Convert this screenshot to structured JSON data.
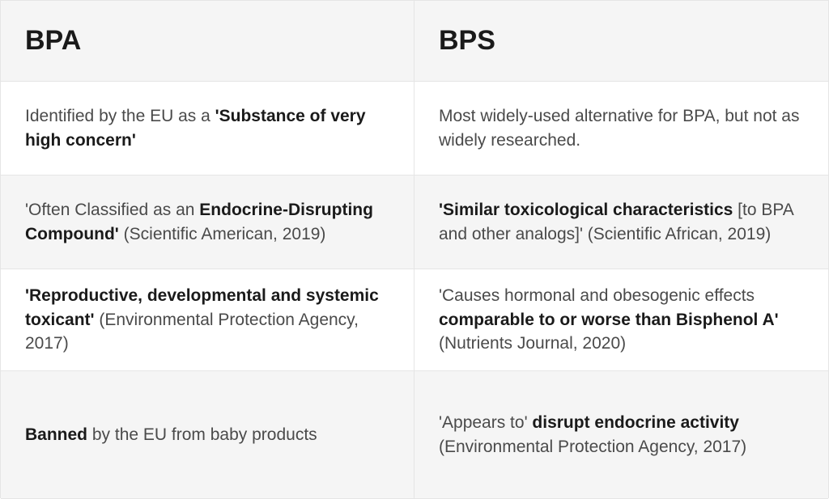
{
  "columns": {
    "left_header": "BPA",
    "right_header": "BPS"
  },
  "rows": [
    {
      "left": {
        "segments": [
          {
            "text": "Identified by the EU as a ",
            "bold": false
          },
          {
            "text": "'Substance of very high concern'",
            "bold": true
          }
        ]
      },
      "right": {
        "segments": [
          {
            "text": "Most widely-used alternative for BPA, but not as widely researched.",
            "bold": false
          }
        ]
      },
      "shaded": false
    },
    {
      "left": {
        "segments": [
          {
            "text": "'Often Classified as an ",
            "bold": false
          },
          {
            "text": "Endocrine-Disrupting Compound'",
            "bold": true
          },
          {
            "text": " (Scientific American, 2019)",
            "bold": false
          }
        ]
      },
      "right": {
        "segments": [
          {
            "text": "'Similar toxicological characteristics",
            "bold": true
          },
          {
            "text": " [to BPA and other analogs]' (Scientific African, 2019)",
            "bold": false
          }
        ]
      },
      "shaded": true
    },
    {
      "left": {
        "segments": [
          {
            "text": "'Reproductive, developmental and systemic toxicant'",
            "bold": true
          },
          {
            "text": " (Environmental Protection Agency, 2017)",
            "bold": false
          }
        ]
      },
      "right": {
        "segments": [
          {
            "text": "'Causes hormonal and obesogenic effects ",
            "bold": false
          },
          {
            "text": "comparable to or worse than Bisphenol A'",
            "bold": true
          },
          {
            "text": " (Nutrients Journal, 2020)",
            "bold": false
          }
        ]
      },
      "shaded": false
    },
    {
      "left": {
        "segments": [
          {
            "text": "Banned",
            "bold": true
          },
          {
            "text": " by the EU from baby products",
            "bold": false
          }
        ]
      },
      "right": {
        "segments": [
          {
            "text": "'Appears to' ",
            "bold": false
          },
          {
            "text": "disrupt endocrine activity",
            "bold": true
          },
          {
            "text": " (Environmental Protection Agency, 2017)",
            "bold": false
          }
        ]
      },
      "shaded": true
    }
  ],
  "styling": {
    "border_color": "#e5e5e5",
    "text_color": "#4a4a4a",
    "bold_color": "#1a1a1a",
    "shaded_bg": "#f5f5f5",
    "white_bg": "#ffffff",
    "header_fontsize": 34,
    "body_fontsize": 21,
    "cell_padding_v": 24,
    "cell_padding_h": 30
  }
}
